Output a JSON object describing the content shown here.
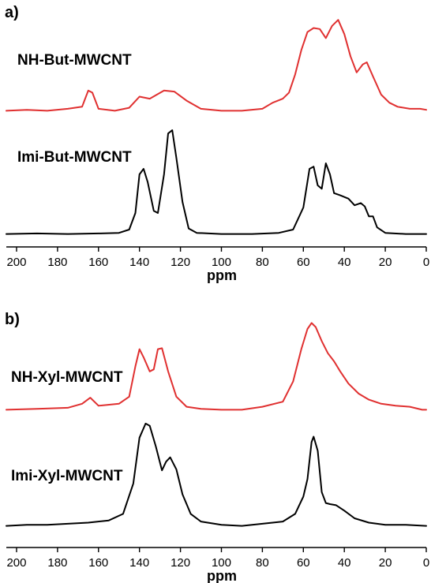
{
  "chart_data": [
    {
      "type": "line",
      "panel_label": "a)",
      "xlabel": "ppm",
      "ylabel": "",
      "xlim": [
        205,
        0
      ],
      "x_reversed": true,
      "xticks": [
        200,
        180,
        160,
        140,
        120,
        100,
        80,
        60,
        40,
        20,
        0
      ],
      "grid": false,
      "series": [
        {
          "name": "NH-But-MWCNT",
          "color": "#e03030",
          "points": [
            [
              205,
              0.02
            ],
            [
              195,
              0.03
            ],
            [
              185,
              0.02
            ],
            [
              175,
              0.04
            ],
            [
              168,
              0.06
            ],
            [
              165,
              0.22
            ],
            [
              163,
              0.2
            ],
            [
              160,
              0.04
            ],
            [
              152,
              0.02
            ],
            [
              145,
              0.05
            ],
            [
              140,
              0.16
            ],
            [
              135,
              0.14
            ],
            [
              128,
              0.22
            ],
            [
              123,
              0.21
            ],
            [
              117,
              0.12
            ],
            [
              110,
              0.04
            ],
            [
              100,
              0.02
            ],
            [
              90,
              0.02
            ],
            [
              80,
              0.04
            ],
            [
              75,
              0.1
            ],
            [
              70,
              0.14
            ],
            [
              67,
              0.2
            ],
            [
              64,
              0.38
            ],
            [
              61,
              0.62
            ],
            [
              58,
              0.8
            ],
            [
              55,
              0.84
            ],
            [
              52,
              0.83
            ],
            [
              49,
              0.74
            ],
            [
              46,
              0.86
            ],
            [
              43,
              0.92
            ],
            [
              40,
              0.78
            ],
            [
              37,
              0.56
            ],
            [
              34,
              0.4
            ],
            [
              31,
              0.48
            ],
            [
              29,
              0.5
            ],
            [
              26,
              0.36
            ],
            [
              22,
              0.18
            ],
            [
              18,
              0.1
            ],
            [
              14,
              0.06
            ],
            [
              8,
              0.04
            ],
            [
              3,
              0.04
            ],
            [
              0,
              0.03
            ]
          ]
        },
        {
          "name": "Imi-But-MWCNT",
          "color": "#000000",
          "points": [
            [
              205,
              0.01
            ],
            [
              190,
              0.015
            ],
            [
              175,
              0.01
            ],
            [
              160,
              0.015
            ],
            [
              150,
              0.02
            ],
            [
              145,
              0.05
            ],
            [
              142,
              0.2
            ],
            [
              140,
              0.55
            ],
            [
              138,
              0.6
            ],
            [
              136,
              0.48
            ],
            [
              133,
              0.22
            ],
            [
              131,
              0.2
            ],
            [
              128,
              0.55
            ],
            [
              126,
              0.92
            ],
            [
              124,
              0.95
            ],
            [
              122,
              0.7
            ],
            [
              119,
              0.3
            ],
            [
              116,
              0.06
            ],
            [
              112,
              0.02
            ],
            [
              100,
              0.01
            ],
            [
              85,
              0.01
            ],
            [
              72,
              0.02
            ],
            [
              65,
              0.05
            ],
            [
              60,
              0.25
            ],
            [
              57,
              0.6
            ],
            [
              55,
              0.62
            ],
            [
              53,
              0.45
            ],
            [
              51,
              0.42
            ],
            [
              49,
              0.65
            ],
            [
              47,
              0.55
            ],
            [
              45,
              0.38
            ],
            [
              42,
              0.36
            ],
            [
              38,
              0.33
            ],
            [
              35,
              0.27
            ],
            [
              32,
              0.29
            ],
            [
              30,
              0.26
            ],
            [
              28,
              0.17
            ],
            [
              26,
              0.17
            ],
            [
              24,
              0.07
            ],
            [
              20,
              0.02
            ],
            [
              10,
              0.01
            ],
            [
              0,
              0.01
            ]
          ]
        }
      ]
    },
    {
      "type": "line",
      "panel_label": "b)",
      "xlabel": "ppm",
      "ylabel": "",
      "xlim": [
        205,
        0
      ],
      "x_reversed": true,
      "xticks": [
        200,
        180,
        160,
        140,
        120,
        100,
        80,
        60,
        40,
        20,
        0
      ],
      "grid": false,
      "series": [
        {
          "name": "NH-Xyl-MWCNT",
          "color": "#e03030",
          "points": [
            [
              205,
              0.02
            ],
            [
              190,
              0.03
            ],
            [
              175,
              0.04
            ],
            [
              168,
              0.08
            ],
            [
              164,
              0.14
            ],
            [
              160,
              0.06
            ],
            [
              150,
              0.08
            ],
            [
              145,
              0.15
            ],
            [
              142,
              0.45
            ],
            [
              140,
              0.62
            ],
            [
              138,
              0.54
            ],
            [
              135,
              0.4
            ],
            [
              133,
              0.42
            ],
            [
              131,
              0.62
            ],
            [
              129,
              0.63
            ],
            [
              126,
              0.4
            ],
            [
              122,
              0.15
            ],
            [
              117,
              0.05
            ],
            [
              110,
              0.03
            ],
            [
              100,
              0.02
            ],
            [
              90,
              0.02
            ],
            [
              80,
              0.05
            ],
            [
              70,
              0.1
            ],
            [
              65,
              0.3
            ],
            [
              61,
              0.62
            ],
            [
              58,
              0.82
            ],
            [
              56,
              0.88
            ],
            [
              54,
              0.84
            ],
            [
              51,
              0.7
            ],
            [
              48,
              0.58
            ],
            [
              45,
              0.5
            ],
            [
              42,
              0.4
            ],
            [
              38,
              0.28
            ],
            [
              33,
              0.18
            ],
            [
              28,
              0.12
            ],
            [
              22,
              0.08
            ],
            [
              15,
              0.06
            ],
            [
              8,
              0.05
            ],
            [
              2,
              0.02
            ],
            [
              0,
              0.02
            ]
          ]
        },
        {
          "name": "Imi-Xyl-MWCNT",
          "color": "#000000",
          "points": [
            [
              205,
              0.01
            ],
            [
              195,
              0.02
            ],
            [
              185,
              0.02
            ],
            [
              175,
              0.03
            ],
            [
              165,
              0.04
            ],
            [
              155,
              0.06
            ],
            [
              148,
              0.12
            ],
            [
              143,
              0.4
            ],
            [
              140,
              0.82
            ],
            [
              137,
              0.95
            ],
            [
              135,
              0.93
            ],
            [
              132,
              0.74
            ],
            [
              129,
              0.52
            ],
            [
              127,
              0.6
            ],
            [
              125,
              0.64
            ],
            [
              122,
              0.53
            ],
            [
              119,
              0.3
            ],
            [
              115,
              0.12
            ],
            [
              110,
              0.05
            ],
            [
              100,
              0.02
            ],
            [
              90,
              0.01
            ],
            [
              80,
              0.03
            ],
            [
              70,
              0.05
            ],
            [
              64,
              0.12
            ],
            [
              60,
              0.28
            ],
            [
              58,
              0.44
            ],
            [
              56,
              0.78
            ],
            [
              55,
              0.83
            ],
            [
              53,
              0.7
            ],
            [
              51,
              0.32
            ],
            [
              49,
              0.22
            ],
            [
              47,
              0.21
            ],
            [
              44,
              0.2
            ],
            [
              40,
              0.15
            ],
            [
              35,
              0.08
            ],
            [
              28,
              0.04
            ],
            [
              20,
              0.02
            ],
            [
              10,
              0.02
            ],
            [
              0,
              0.01
            ]
          ]
        }
      ]
    }
  ]
}
